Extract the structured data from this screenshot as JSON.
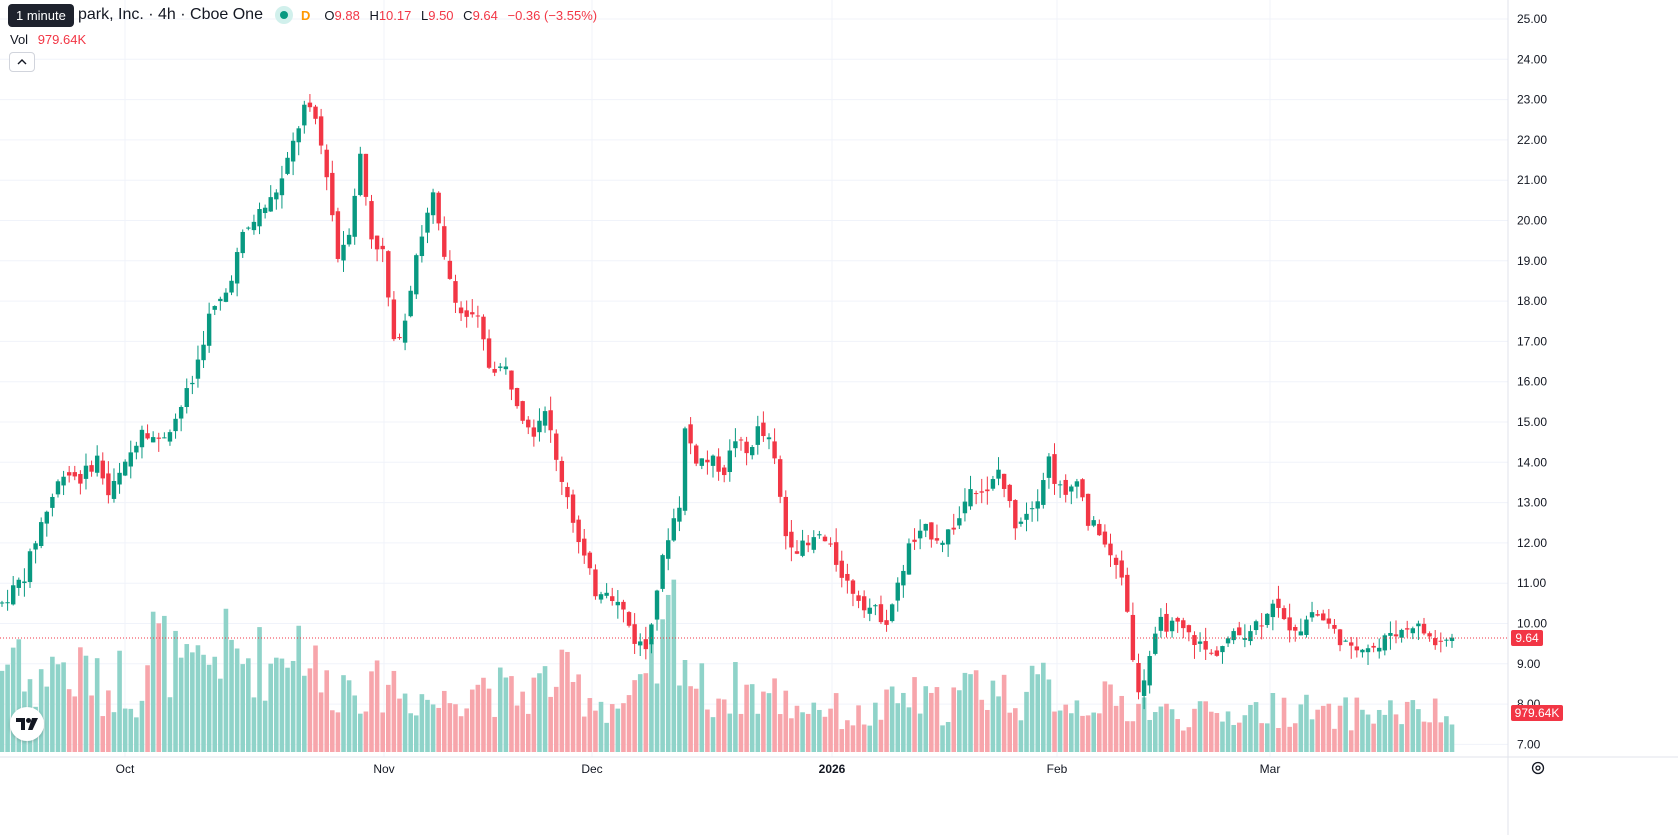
{
  "tooltip": "1 minute",
  "legend": {
    "title": "park, Inc. · 4h · Cboe One",
    "d_badge": "D",
    "open_label": "O",
    "open_value": "9.88",
    "high_label": "H",
    "high_value": "10.17",
    "low_label": "L",
    "low_value": "9.50",
    "close_label": "C",
    "close_value": "9.64",
    "change": "−0.36 (−3.55%)"
  },
  "volume": {
    "label": "Vol",
    "value": "979.64K"
  },
  "icons": {
    "collapse": "chevron-up-icon",
    "logo": "tradingview-logo-icon",
    "settings": "gear-icon"
  },
  "colors": {
    "up": "#089981",
    "down": "#f23645",
    "up_vol": "#8fd3c9",
    "down_vol": "#f7a5ab",
    "grid": "#f0f3fa"
  },
  "chart_data": {
    "type": "candlestick",
    "timeframe": "4h",
    "x_tick_labels": [
      "Oct",
      "Nov",
      "Dec",
      "2026",
      "Feb",
      "Mar"
    ],
    "y_tick_labels": [
      "25.00",
      "24.00",
      "23.00",
      "22.00",
      "21.00",
      "20.00",
      "19.00",
      "18.00",
      "17.00",
      "16.00",
      "15.00",
      "14.00",
      "13.00",
      "12.00",
      "11.00",
      "10.00",
      "9.00",
      "8.00",
      "7.00"
    ],
    "ylim": [
      6.8,
      25.2
    ],
    "last_price": "9.64",
    "last_volume": "979.64K",
    "price_path": [
      [
        0,
        10.5
      ],
      [
        4,
        11.2
      ],
      [
        7,
        12.5
      ],
      [
        11,
        13.8
      ],
      [
        14,
        13.6
      ],
      [
        17,
        14.1
      ],
      [
        19,
        13.2
      ],
      [
        22,
        13.9
      ],
      [
        25,
        14.9
      ],
      [
        28,
        14.5
      ],
      [
        31,
        15.1
      ],
      [
        34,
        16.0
      ],
      [
        37,
        17.6
      ],
      [
        40,
        18.2
      ],
      [
        43,
        19.6
      ],
      [
        46,
        20.2
      ],
      [
        48,
        20.5
      ],
      [
        50,
        21.0
      ],
      [
        52,
        21.9
      ],
      [
        54,
        22.8
      ],
      [
        56,
        22.5
      ],
      [
        58,
        21.2
      ],
      [
        60,
        19.1
      ],
      [
        62,
        19.8
      ],
      [
        64,
        21.6
      ],
      [
        66,
        19.6
      ],
      [
        68,
        19.2
      ],
      [
        70,
        16.9
      ],
      [
        72,
        17.6
      ],
      [
        74,
        19.2
      ],
      [
        77,
        20.6
      ],
      [
        79,
        19.0
      ],
      [
        82,
        17.7
      ],
      [
        85,
        17.5
      ],
      [
        87,
        16.4
      ],
      [
        90,
        16.3
      ],
      [
        93,
        15.2
      ],
      [
        95,
        14.8
      ],
      [
        97,
        15.4
      ],
      [
        99,
        14.0
      ],
      [
        101,
        13.2
      ],
      [
        103,
        12.0
      ],
      [
        106,
        10.8
      ],
      [
        108,
        10.9
      ],
      [
        111,
        10.3
      ],
      [
        113,
        9.6
      ],
      [
        115,
        9.4
      ],
      [
        117,
        10.9
      ],
      [
        119,
        12.2
      ],
      [
        121,
        13.0
      ],
      [
        122,
        14.8
      ],
      [
        124,
        14.1
      ],
      [
        127,
        14.0
      ],
      [
        129,
        13.8
      ],
      [
        131,
        14.6
      ],
      [
        133,
        14.2
      ],
      [
        135,
        14.8
      ],
      [
        137,
        14.5
      ],
      [
        138,
        14.0
      ],
      [
        140,
        12.2
      ],
      [
        142,
        11.9
      ],
      [
        144,
        11.9
      ],
      [
        146,
        12.2
      ],
      [
        148,
        11.8
      ],
      [
        151,
        11.0
      ],
      [
        154,
        10.5
      ],
      [
        156,
        10.3
      ],
      [
        158,
        10.1
      ],
      [
        160,
        10.9
      ],
      [
        162,
        11.9
      ],
      [
        165,
        12.3
      ],
      [
        168,
        12.1
      ],
      [
        171,
        12.6
      ],
      [
        173,
        13.5
      ],
      [
        176,
        13.2
      ],
      [
        178,
        13.8
      ],
      [
        181,
        12.5
      ],
      [
        183,
        12.8
      ],
      [
        185,
        13.2
      ],
      [
        187,
        14.1
      ],
      [
        188,
        13.6
      ],
      [
        190,
        13.1
      ],
      [
        192,
        13.7
      ],
      [
        194,
        12.5
      ],
      [
        196,
        12.3
      ],
      [
        198,
        11.6
      ],
      [
        200,
        11.2
      ],
      [
        201,
        10.3
      ],
      [
        203,
        8.2
      ],
      [
        205,
        9.2
      ],
      [
        207,
        10.0
      ],
      [
        210,
        9.9
      ],
      [
        213,
        9.6
      ],
      [
        216,
        9.2
      ],
      [
        219,
        9.6
      ],
      [
        222,
        9.8
      ],
      [
        225,
        10.1
      ],
      [
        227,
        10.6
      ],
      [
        229,
        10.0
      ],
      [
        232,
        9.9
      ],
      [
        234,
        10.3
      ],
      [
        236,
        10.1
      ],
      [
        238,
        9.8
      ],
      [
        241,
        9.3
      ],
      [
        243,
        9.5
      ],
      [
        246,
        9.4
      ],
      [
        248,
        9.8
      ],
      [
        250,
        9.8
      ],
      [
        252,
        10.0
      ],
      [
        254,
        9.8
      ],
      [
        256,
        9.5
      ],
      [
        258,
        9.6
      ],
      [
        259,
        9.64
      ]
    ],
    "volume_path": [
      [
        0,
        0.45
      ],
      [
        3,
        0.6
      ],
      [
        6,
        0.25
      ],
      [
        9,
        0.55
      ],
      [
        12,
        0.35
      ],
      [
        15,
        0.45
      ],
      [
        18,
        0.3
      ],
      [
        21,
        0.4
      ],
      [
        24,
        0.3
      ],
      [
        27,
        0.6
      ],
      [
        30,
        0.5
      ],
      [
        33,
        0.4
      ],
      [
        36,
        0.45
      ],
      [
        39,
        0.55
      ],
      [
        42,
        0.5
      ],
      [
        45,
        0.5
      ],
      [
        48,
        0.45
      ],
      [
        51,
        0.6
      ],
      [
        54,
        0.6
      ],
      [
        57,
        0.35
      ],
      [
        60,
        0.35
      ],
      [
        63,
        0.4
      ],
      [
        66,
        0.3
      ],
      [
        69,
        0.4
      ],
      [
        72,
        0.3
      ],
      [
        75,
        0.3
      ],
      [
        78,
        0.25
      ],
      [
        81,
        0.3
      ],
      [
        84,
        0.4
      ],
      [
        87,
        0.35
      ],
      [
        90,
        0.3
      ],
      [
        93,
        0.3
      ],
      [
        96,
        0.35
      ],
      [
        99,
        0.4
      ],
      [
        102,
        0.35
      ],
      [
        105,
        0.3
      ],
      [
        108,
        0.25
      ],
      [
        111,
        0.25
      ],
      [
        114,
        0.3
      ],
      [
        117,
        0.45
      ],
      [
        120,
        0.75
      ],
      [
        123,
        0.4
      ],
      [
        126,
        0.3
      ],
      [
        129,
        0.3
      ],
      [
        132,
        0.35
      ],
      [
        135,
        0.3
      ],
      [
        138,
        0.3
      ],
      [
        141,
        0.25
      ],
      [
        144,
        0.25
      ],
      [
        147,
        0.25
      ],
      [
        150,
        0.2
      ],
      [
        153,
        0.18
      ],
      [
        156,
        0.2
      ],
      [
        159,
        0.25
      ],
      [
        162,
        0.3
      ],
      [
        165,
        0.25
      ],
      [
        168,
        0.25
      ],
      [
        171,
        0.3
      ],
      [
        174,
        0.35
      ],
      [
        177,
        0.35
      ],
      [
        180,
        0.3
      ],
      [
        183,
        0.3
      ],
      [
        186,
        0.35
      ],
      [
        189,
        0.3
      ],
      [
        192,
        0.25
      ],
      [
        195,
        0.3
      ],
      [
        198,
        0.25
      ],
      [
        201,
        0.25
      ],
      [
        204,
        0.25
      ],
      [
        207,
        0.2
      ],
      [
        210,
        0.2
      ],
      [
        213,
        0.2
      ],
      [
        216,
        0.18
      ],
      [
        219,
        0.2
      ],
      [
        222,
        0.22
      ],
      [
        225,
        0.22
      ],
      [
        228,
        0.22
      ],
      [
        231,
        0.25
      ],
      [
        234,
        0.2
      ],
      [
        237,
        0.18
      ],
      [
        240,
        0.2
      ],
      [
        243,
        0.22
      ],
      [
        246,
        0.2
      ],
      [
        249,
        0.22
      ],
      [
        252,
        0.2
      ],
      [
        255,
        0.2
      ],
      [
        259,
        0.18
      ]
    ],
    "count": 260
  }
}
